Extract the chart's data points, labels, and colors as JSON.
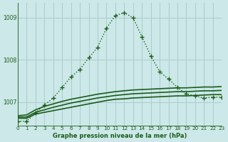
{
  "background_color": "#cce8e8",
  "grid_color": "#aacccc",
  "line_color": "#1a5c1a",
  "title": "Graphe pression niveau de la mer (hPa)",
  "xlim": [
    0,
    23
  ],
  "ylim": [
    1006.45,
    1009.35
  ],
  "yticks": [
    1007,
    1008,
    1009
  ],
  "xticks": [
    0,
    1,
    2,
    3,
    4,
    5,
    6,
    7,
    8,
    9,
    10,
    11,
    12,
    13,
    14,
    15,
    16,
    17,
    18,
    19,
    20,
    21,
    22,
    23
  ],
  "series": [
    {
      "x": [
        0,
        1,
        2,
        3,
        4,
        5,
        6,
        7,
        8,
        9,
        10,
        11,
        12,
        13,
        14,
        15,
        16,
        17,
        18,
        19,
        20,
        21,
        22,
        23
      ],
      "y": [
        1006.62,
        1006.62,
        1006.72,
        1006.76,
        1006.8,
        1006.84,
        1006.88,
        1006.92,
        1006.96,
        1007.0,
        1007.04,
        1007.07,
        1007.08,
        1007.1,
        1007.11,
        1007.12,
        1007.13,
        1007.14,
        1007.15,
        1007.15,
        1007.16,
        1007.17,
        1007.18,
        1007.18
      ],
      "style": "line",
      "linewidth": 1.2
    },
    {
      "x": [
        0,
        1,
        2,
        3,
        4,
        5,
        6,
        7,
        8,
        9,
        10,
        11,
        12,
        13,
        14,
        15,
        16,
        17,
        18,
        19,
        20,
        21,
        22,
        23
      ],
      "y": [
        1006.65,
        1006.65,
        1006.76,
        1006.82,
        1006.88,
        1006.93,
        1006.98,
        1007.02,
        1007.06,
        1007.1,
        1007.13,
        1007.16,
        1007.18,
        1007.2,
        1007.21,
        1007.22,
        1007.23,
        1007.24,
        1007.25,
        1007.25,
        1007.26,
        1007.27,
        1007.27,
        1007.28
      ],
      "style": "line",
      "linewidth": 1.2
    },
    {
      "x": [
        0,
        1,
        2,
        3,
        4,
        5,
        6,
        7,
        8,
        9,
        10,
        11,
        12,
        13,
        14,
        15,
        16,
        17,
        18,
        19,
        20,
        21,
        22,
        23
      ],
      "y": [
        1006.68,
        1006.7,
        1006.82,
        1006.9,
        1006.96,
        1007.02,
        1007.07,
        1007.11,
        1007.15,
        1007.19,
        1007.22,
        1007.25,
        1007.27,
        1007.29,
        1007.3,
        1007.31,
        1007.32,
        1007.33,
        1007.34,
        1007.34,
        1007.35,
        1007.36,
        1007.36,
        1007.37
      ],
      "style": "line",
      "linewidth": 1.2
    },
    {
      "x": [
        0,
        1,
        2,
        3,
        4,
        5,
        6,
        7,
        8,
        9,
        10,
        11,
        12,
        13,
        14,
        15,
        16,
        17,
        18,
        19,
        20,
        21,
        22,
        23
      ],
      "y": [
        1006.55,
        1006.55,
        1006.75,
        1006.93,
        1007.1,
        1007.35,
        1007.6,
        1007.78,
        1008.05,
        1008.3,
        1008.75,
        1009.05,
        1009.12,
        1009.0,
        1008.55,
        1008.1,
        1007.72,
        1007.55,
        1007.35,
        1007.2,
        1007.15,
        1007.1,
        1007.12,
        1007.12
      ],
      "style": "line_marker",
      "marker": "+",
      "markersize": 4,
      "linewidth": 1.0
    }
  ]
}
